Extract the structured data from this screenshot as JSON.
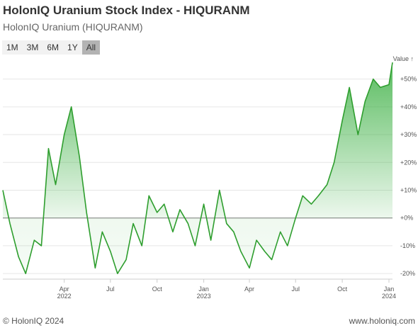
{
  "title": "HolonIQ Uranium Stock Index - HIQURANM",
  "subtitle": "HolonIQ Uranium (HIQURANM)",
  "range_buttons": [
    "1M",
    "3M",
    "6M",
    "1Y",
    "All"
  ],
  "active_range": "All",
  "footer": {
    "copyright": "© HolonIQ 2024",
    "url": "www.holoniq.com"
  },
  "colors": {
    "line": "#2e9e2e",
    "area_top": "#3cb043",
    "zero_line": "#777777",
    "grid": "#e6e6e6"
  },
  "chart_data": {
    "type": "area",
    "series": [
      {
        "values_unit": "%",
        "x": [
          "2021-12-01",
          "2021-12-15",
          "2022-01-01",
          "2022-01-15",
          "2022-02-01",
          "2022-02-15",
          "2022-03-01",
          "2022-03-15",
          "2022-04-01",
          "2022-04-15",
          "2022-05-01",
          "2022-05-15",
          "2022-06-01",
          "2022-06-15",
          "2022-07-01",
          "2022-07-15",
          "2022-08-01",
          "2022-08-15",
          "2022-09-01",
          "2022-09-15",
          "2022-10-01",
          "2022-10-15",
          "2022-11-01",
          "2022-11-15",
          "2022-12-01",
          "2022-12-15",
          "2023-01-01",
          "2023-01-15",
          "2023-02-01",
          "2023-02-15",
          "2023-03-01",
          "2023-03-15",
          "2023-04-01",
          "2023-04-15",
          "2023-05-01",
          "2023-05-15",
          "2023-06-01",
          "2023-06-15",
          "2023-07-01",
          "2023-07-15",
          "2023-08-01",
          "2023-08-15",
          "2023-09-01",
          "2023-09-15",
          "2023-10-01",
          "2023-10-15",
          "2023-11-01",
          "2023-11-15",
          "2023-12-01",
          "2023-12-15",
          "2024-01-01",
          "2024-01-08"
        ],
        "values": [
          10,
          -2,
          -14,
          -20,
          -8,
          -10,
          25,
          12,
          30,
          40,
          22,
          2,
          -18,
          -5,
          -12,
          -20,
          -15,
          -2,
          -10,
          8,
          2,
          5,
          -5,
          3,
          -2,
          -10,
          5,
          -8,
          10,
          -2,
          -5,
          -12,
          -18,
          -8,
          -12,
          -15,
          -5,
          -10,
          0,
          8,
          5,
          8,
          12,
          20,
          35,
          47,
          30,
          42,
          50,
          47,
          48,
          56
        ]
      }
    ],
    "y_ticks": [
      "+50%",
      "+40%",
      "+30%",
      "+20%",
      "+10%",
      "+0%",
      "-10%",
      "-20%"
    ],
    "y_tick_values": [
      50,
      40,
      30,
      20,
      10,
      0,
      -10,
      -20
    ],
    "ylim": [
      -22,
      55
    ],
    "x_ticks": [
      {
        "label": "Apr",
        "sub": "2022",
        "date": "2022-04-01"
      },
      {
        "label": "Jul",
        "sub": "",
        "date": "2022-07-01"
      },
      {
        "label": "Oct",
        "sub": "",
        "date": "2022-10-01"
      },
      {
        "label": "Jan",
        "sub": "2023",
        "date": "2023-01-01"
      },
      {
        "label": "Apr",
        "sub": "",
        "date": "2023-04-01"
      },
      {
        "label": "Jul",
        "sub": "",
        "date": "2023-07-01"
      },
      {
        "label": "Oct",
        "sub": "",
        "date": "2023-10-01"
      },
      {
        "label": "Jan",
        "sub": "2024",
        "date": "2024-01-01"
      }
    ],
    "value_axis_label": "Value ↑",
    "grid": true,
    "y_axis_side": "right"
  }
}
